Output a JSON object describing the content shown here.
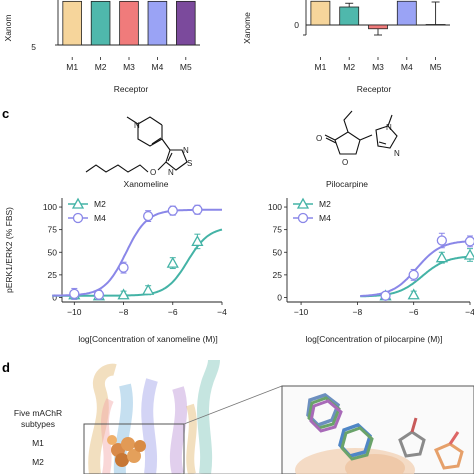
{
  "panels": {
    "c_label": "c",
    "d_label": "d"
  },
  "top_left": {
    "ylabel_fragment": "Xanom",
    "ytick": "5",
    "xlabel": "Receptor",
    "categories": [
      "M1",
      "M2",
      "M3",
      "M4",
      "M5"
    ]
  },
  "top_right": {
    "ylabel_fragment": "Xanome",
    "ytick": "0",
    "xlabel": "Receptor",
    "categories": [
      "M1",
      "M2",
      "M3",
      "M4",
      "M5"
    ]
  },
  "structures": {
    "left_name": "Xanomeline",
    "right_name": "Pilocarpine",
    "atoms": {
      "N": "N",
      "O": "O",
      "S": "S"
    }
  },
  "chart_data": [
    {
      "type": "bar",
      "categories": [
        "M1",
        "M2",
        "M3",
        "M4",
        "M5"
      ],
      "values": [
        8.2,
        8.2,
        8.2,
        8.2,
        8.2
      ],
      "xlabel": "Receptor",
      "ylim": [
        5,
        8.3
      ],
      "colors": [
        "#f6d59b",
        "#4fb8ac",
        "#f07b7b",
        "#9aa3f5",
        "#7b4a9c"
      ]
    },
    {
      "type": "bar",
      "categories": [
        "M1",
        "M2",
        "M3",
        "M4",
        "M5"
      ],
      "values": [
        0.95,
        0.72,
        -0.15,
        0.95,
        0.02
      ],
      "errors": [
        0.0,
        0.15,
        0.25,
        0.0,
        0.9
      ],
      "xlabel": "Receptor",
      "ylim": [
        -0.4,
        1.0
      ],
      "colors": [
        "#f6d59b",
        "#4fb8ac",
        "#f07b7b",
        "#9aa3f5",
        "#7b4a9c"
      ]
    },
    {
      "type": "line",
      "title": "",
      "xlabel": "log[Concentration of xanomeline (M)]",
      "ylabel": "pERK1/ERK2 (% FBS)",
      "xlim": [
        -10.5,
        -4
      ],
      "ylim": [
        -5,
        110
      ],
      "xticks": [
        -10,
        -8,
        -6,
        -4
      ],
      "yticks": [
        0,
        25,
        50,
        75,
        100
      ],
      "series": [
        {
          "name": "M2",
          "color": "#44b3a6",
          "marker": "triangle",
          "x": [
            -10,
            -9,
            -8,
            -7,
            -6,
            -5
          ],
          "y": [
            3,
            2,
            3,
            8,
            38,
            62
          ],
          "err": [
            5,
            4,
            4,
            5,
            6,
            8
          ],
          "logEC50": -5.4,
          "top": 78,
          "bottom": 2
        },
        {
          "name": "M4",
          "color": "#8a87e8",
          "marker": "circle",
          "x": [
            -10,
            -9,
            -8,
            -7,
            -6,
            -5
          ],
          "y": [
            4,
            3,
            33,
            90,
            96,
            97
          ],
          "err": [
            6,
            5,
            6,
            6,
            5,
            5
          ],
          "logEC50": -7.9,
          "top": 97,
          "bottom": 2
        }
      ]
    },
    {
      "type": "line",
      "title": "",
      "xlabel": "log[Concentration of pilocarpine (M)]",
      "ylabel": "",
      "xlim": [
        -10.5,
        -4
      ],
      "ylim": [
        -5,
        110
      ],
      "xticks": [
        -10,
        -8,
        -6,
        -4
      ],
      "yticks": [
        0,
        25,
        50,
        75,
        100
      ],
      "series": [
        {
          "name": "M2",
          "color": "#44b3a6",
          "marker": "triangle",
          "x": [
            -7,
            -6,
            -5,
            -4
          ],
          "y": [
            2,
            3,
            44,
            47
          ],
          "err": [
            3,
            4,
            6,
            7
          ],
          "logEC50": -5.7,
          "top": 46,
          "bottom": 1
        },
        {
          "name": "M4",
          "color": "#8a87e8",
          "marker": "circle",
          "x": [
            -7,
            -6,
            -5,
            -4
          ],
          "y": [
            2,
            25,
            63,
            62
          ],
          "err": [
            4,
            6,
            8,
            6
          ],
          "logEC50": -5.9,
          "top": 63,
          "bottom": 1
        }
      ]
    }
  ],
  "panel_d": {
    "legend_title_1": "Five mAChR",
    "legend_title_2": "subtypes",
    "labels": [
      "M1",
      "M2"
    ],
    "label_colors": [
      "#e9b44c",
      "#4fb8ac"
    ]
  }
}
